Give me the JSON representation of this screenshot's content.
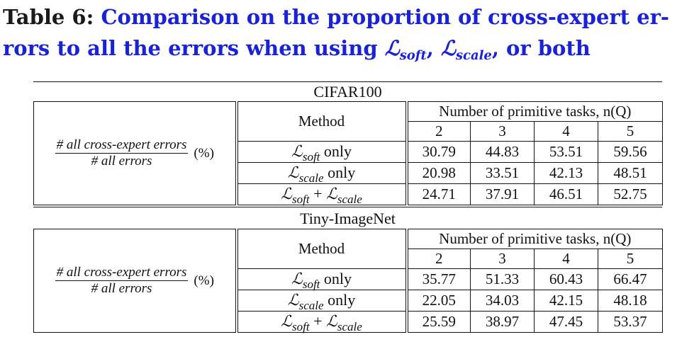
{
  "caption": {
    "label": "Table 6:",
    "text_a": "Comparison on the proportion of cross-expert er- rors to all the errors when using",
    "L": "ℒ",
    "sub_soft": "soft",
    "sub_scale": "scale",
    "sep": ",",
    "text_b": ", or both"
  },
  "sections": [
    {
      "name": "CIFAR100",
      "metric_num": "# all cross-expert errors",
      "metric_den": "# all errors",
      "metric_unit": "(%)",
      "method_header": "Method",
      "tasks_header": "Number of primitive tasks, n(Q)",
      "n_values": [
        "2",
        "3",
        "4",
        "5"
      ],
      "rows": [
        {
          "m1": "soft",
          "plus": "",
          "m2": "",
          "suffix": "only",
          "values": [
            "30.79",
            "44.83",
            "53.51",
            "59.56"
          ]
        },
        {
          "m1": "scale",
          "plus": "",
          "m2": "",
          "suffix": "only",
          "values": [
            "20.98",
            "33.51",
            "42.13",
            "48.51"
          ]
        },
        {
          "m1": "soft",
          "plus": "+",
          "m2": "scale",
          "suffix": "",
          "values": [
            "24.71",
            "37.91",
            "46.51",
            "52.75"
          ]
        }
      ]
    },
    {
      "name": "Tiny-ImageNet",
      "metric_num": "# all cross-expert errors",
      "metric_den": "# all errors",
      "metric_unit": "(%)",
      "method_header": "Method",
      "tasks_header": "Number of primitive tasks, n(Q)",
      "n_values": [
        "2",
        "3",
        "4",
        "5"
      ],
      "rows": [
        {
          "m1": "soft",
          "plus": "",
          "m2": "",
          "suffix": "only",
          "values": [
            "35.77",
            "51.33",
            "60.43",
            "66.47"
          ]
        },
        {
          "m1": "scale",
          "plus": "",
          "m2": "",
          "suffix": "only",
          "values": [
            "22.05",
            "34.03",
            "42.15",
            "48.18"
          ]
        },
        {
          "m1": "soft",
          "plus": "+",
          "m2": "scale",
          "suffix": "",
          "values": [
            "25.59",
            "38.97",
            "47.45",
            "53.37"
          ]
        }
      ]
    }
  ]
}
